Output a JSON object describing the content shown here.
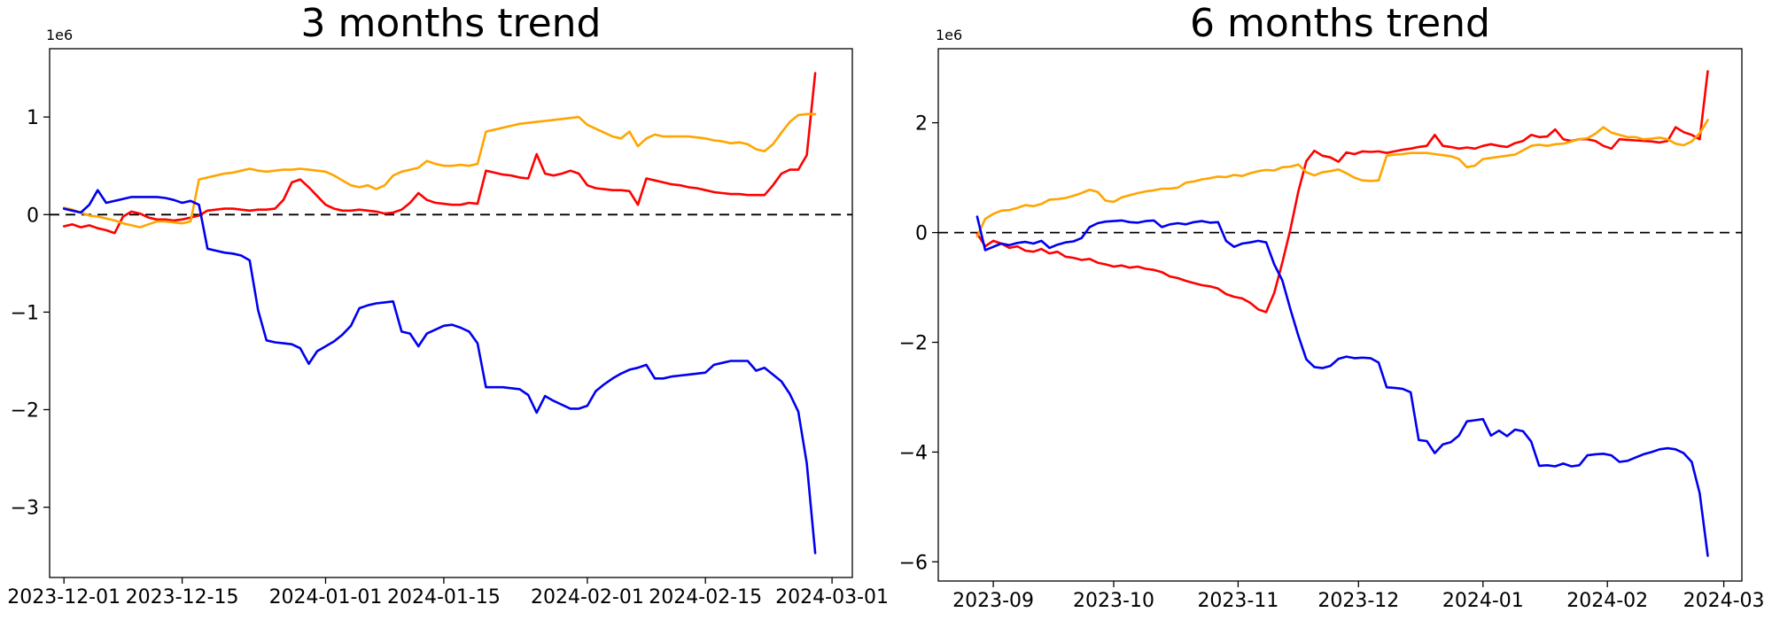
{
  "background": "#ffffff",
  "chart_data": [
    {
      "type": "line",
      "title": "3 months trend",
      "axis_scale_label": "1e6",
      "y_unit": "1e6",
      "grid": false,
      "legend": "none",
      "zero_line_dashed": true,
      "start_date": "2023-12-01",
      "end_date": "2024-02-28",
      "sample_step_days": 1,
      "x_tick_labels": [
        "2023-12-01",
        "2023-12-15",
        "2024-01-01",
        "2024-01-15",
        "2024-02-01",
        "2024-02-15",
        "2024-03-01"
      ],
      "x_tick_days": [
        0,
        14,
        31,
        45,
        62,
        76,
        91
      ],
      "xlim_days": [
        -1.7,
        93.4
      ],
      "y_ticks": [
        1,
        0,
        -1,
        -2,
        -3
      ],
      "ylim": [
        -3.72,
        1.7
      ],
      "series": [
        {
          "name": "red",
          "color": "#ff0000",
          "values": [
            -0.12,
            -0.1,
            -0.13,
            -0.11,
            -0.14,
            -0.16,
            -0.19,
            -0.02,
            0.03,
            0.01,
            -0.03,
            -0.05,
            -0.05,
            -0.06,
            -0.05,
            -0.03,
            -0.01,
            0.04,
            0.05,
            0.06,
            0.06,
            0.05,
            0.04,
            0.05,
            0.05,
            0.06,
            0.15,
            0.33,
            0.36,
            0.28,
            0.19,
            0.1,
            0.06,
            0.04,
            0.04,
            0.05,
            0.04,
            0.03,
            0.01,
            0.02,
            0.05,
            0.12,
            0.22,
            0.15,
            0.12,
            0.11,
            0.1,
            0.1,
            0.12,
            0.11,
            0.45,
            0.43,
            0.41,
            0.4,
            0.38,
            0.37,
            0.62,
            0.42,
            0.4,
            0.42,
            0.45,
            0.42,
            0.3,
            0.27,
            0.26,
            0.25,
            0.25,
            0.24,
            0.1,
            0.37,
            0.35,
            0.33,
            0.31,
            0.3,
            0.28,
            0.27,
            0.25,
            0.23,
            0.22,
            0.21,
            0.21,
            0.2,
            0.2,
            0.2,
            0.3,
            0.42,
            0.46,
            0.46,
            0.61,
            1.45
          ]
        },
        {
          "name": "orange",
          "color": "#ffa500",
          "values": [
            0.07,
            0.05,
            0.02,
            -0.01,
            -0.02,
            -0.04,
            -0.06,
            -0.09,
            -0.11,
            -0.13,
            -0.1,
            -0.07,
            -0.07,
            -0.08,
            -0.09,
            -0.07,
            0.36,
            0.38,
            0.4,
            0.42,
            0.43,
            0.45,
            0.47,
            0.45,
            0.44,
            0.45,
            0.46,
            0.46,
            0.47,
            0.46,
            0.45,
            0.44,
            0.4,
            0.35,
            0.3,
            0.28,
            0.3,
            0.26,
            0.3,
            0.4,
            0.44,
            0.46,
            0.48,
            0.55,
            0.52,
            0.5,
            0.5,
            0.51,
            0.5,
            0.52,
            0.85,
            0.87,
            0.89,
            0.91,
            0.93,
            0.94,
            0.95,
            0.96,
            0.97,
            0.98,
            0.99,
            1.0,
            0.92,
            0.88,
            0.84,
            0.8,
            0.78,
            0.85,
            0.7,
            0.78,
            0.82,
            0.8,
            0.8,
            0.8,
            0.8,
            0.79,
            0.78,
            0.76,
            0.75,
            0.73,
            0.74,
            0.72,
            0.67,
            0.65,
            0.72,
            0.84,
            0.95,
            1.02,
            1.03,
            1.03
          ]
        },
        {
          "name": "blue",
          "color": "#0000ee",
          "values": [
            0.06,
            0.04,
            0.02,
            0.1,
            0.25,
            0.12,
            0.14,
            0.16,
            0.18,
            0.18,
            0.18,
            0.18,
            0.17,
            0.15,
            0.12,
            0.14,
            0.1,
            -0.35,
            -0.37,
            -0.39,
            -0.4,
            -0.42,
            -0.47,
            -0.98,
            -1.29,
            -1.31,
            -1.32,
            -1.33,
            -1.37,
            -1.53,
            -1.4,
            -1.35,
            -1.3,
            -1.23,
            -1.14,
            -0.96,
            -0.93,
            -0.91,
            -0.9,
            -0.89,
            -1.2,
            -1.22,
            -1.35,
            -1.22,
            -1.18,
            -1.14,
            -1.13,
            -1.16,
            -1.2,
            -1.32,
            -1.77,
            -1.77,
            -1.77,
            -1.78,
            -1.79,
            -1.85,
            -2.03,
            -1.86,
            -1.91,
            -1.95,
            -1.99,
            -1.99,
            -1.96,
            -1.81,
            -1.74,
            -1.68,
            -1.63,
            -1.59,
            -1.57,
            -1.54,
            -1.68,
            -1.68,
            -1.66,
            -1.65,
            -1.64,
            -1.63,
            -1.62,
            -1.54,
            -1.52,
            -1.5,
            -1.5,
            -1.5,
            -1.6,
            -1.57,
            -1.64,
            -1.71,
            -1.84,
            -2.02,
            -2.55,
            -3.47
          ]
        }
      ]
    },
    {
      "type": "line",
      "title": "6 months trend",
      "axis_scale_label": "1e6",
      "y_unit": "1e6",
      "grid": false,
      "legend": "none",
      "zero_line_dashed": true,
      "start_date": "2023-08-28",
      "end_date": "2024-02-26",
      "sample_step_days": 2,
      "x_tick_labels": [
        "2023-09",
        "2023-10",
        "2023-11",
        "2023-12",
        "2024-01",
        "2024-02",
        "2024-03"
      ],
      "x_tick_days": [
        4,
        34,
        65,
        95,
        126,
        157,
        186
      ],
      "xlim_days": [
        -9.7,
        190.5
      ],
      "y_ticks": [
        2,
        0,
        -2,
        -4,
        -6
      ],
      "ylim": [
        -6.35,
        3.35
      ],
      "series": [
        {
          "name": "red",
          "color": "#ff0000",
          "values": [
            -0.02,
            -0.25,
            -0.15,
            -0.2,
            -0.28,
            -0.25,
            -0.33,
            -0.35,
            -0.3,
            -0.38,
            -0.35,
            -0.44,
            -0.46,
            -0.5,
            -0.48,
            -0.55,
            -0.58,
            -0.62,
            -0.6,
            -0.64,
            -0.62,
            -0.66,
            -0.68,
            -0.72,
            -0.8,
            -0.83,
            -0.88,
            -0.92,
            -0.96,
            -0.98,
            -1.02,
            -1.12,
            -1.17,
            -1.2,
            -1.28,
            -1.4,
            -1.45,
            -1.1,
            -0.55,
            0.05,
            0.75,
            1.3,
            1.49,
            1.4,
            1.37,
            1.29,
            1.46,
            1.43,
            1.48,
            1.47,
            1.48,
            1.45,
            1.48,
            1.51,
            1.53,
            1.56,
            1.58,
            1.78,
            1.58,
            1.56,
            1.53,
            1.55,
            1.53,
            1.58,
            1.61,
            1.58,
            1.56,
            1.63,
            1.67,
            1.78,
            1.74,
            1.75,
            1.88,
            1.7,
            1.67,
            1.7,
            1.7,
            1.67,
            1.58,
            1.53,
            1.7,
            1.69,
            1.68,
            1.67,
            1.66,
            1.64,
            1.67,
            1.92,
            1.83,
            1.78,
            1.7,
            2.94
          ]
        },
        {
          "name": "orange",
          "color": "#ffa500",
          "values": [
            -0.07,
            0.25,
            0.34,
            0.4,
            0.41,
            0.45,
            0.5,
            0.48,
            0.52,
            0.6,
            0.61,
            0.63,
            0.67,
            0.72,
            0.78,
            0.74,
            0.58,
            0.56,
            0.64,
            0.68,
            0.72,
            0.75,
            0.77,
            0.8,
            0.8,
            0.82,
            0.91,
            0.93,
            0.97,
            0.99,
            1.02,
            1.01,
            1.05,
            1.03,
            1.08,
            1.12,
            1.14,
            1.13,
            1.19,
            1.2,
            1.24,
            1.1,
            1.04,
            1.1,
            1.12,
            1.15,
            1.08,
            1.0,
            0.95,
            0.94,
            0.95,
            1.4,
            1.42,
            1.43,
            1.45,
            1.45,
            1.45,
            1.43,
            1.41,
            1.39,
            1.34,
            1.19,
            1.22,
            1.34,
            1.36,
            1.38,
            1.4,
            1.42,
            1.5,
            1.58,
            1.6,
            1.58,
            1.61,
            1.62,
            1.66,
            1.7,
            1.72,
            1.8,
            1.92,
            1.82,
            1.78,
            1.74,
            1.74,
            1.7,
            1.71,
            1.73,
            1.7,
            1.62,
            1.59,
            1.66,
            1.81,
            2.05
          ]
        },
        {
          "name": "blue",
          "color": "#0000ee",
          "values": [
            0.29,
            -0.32,
            -0.26,
            -0.2,
            -0.23,
            -0.19,
            -0.17,
            -0.2,
            -0.15,
            -0.28,
            -0.22,
            -0.18,
            -0.16,
            -0.1,
            0.1,
            0.17,
            0.2,
            0.21,
            0.22,
            0.19,
            0.18,
            0.21,
            0.22,
            0.1,
            0.15,
            0.17,
            0.15,
            0.19,
            0.21,
            0.18,
            0.19,
            -0.15,
            -0.26,
            -0.2,
            -0.18,
            -0.15,
            -0.18,
            -0.58,
            -0.87,
            -1.39,
            -1.88,
            -2.31,
            -2.45,
            -2.47,
            -2.43,
            -2.3,
            -2.26,
            -2.29,
            -2.28,
            -2.29,
            -2.37,
            -2.82,
            -2.83,
            -2.85,
            -2.91,
            -3.78,
            -3.8,
            -4.02,
            -3.86,
            -3.82,
            -3.7,
            -3.44,
            -3.42,
            -3.4,
            -3.7,
            -3.61,
            -3.71,
            -3.59,
            -3.62,
            -3.81,
            -4.25,
            -4.24,
            -4.26,
            -4.21,
            -4.26,
            -4.24,
            -4.06,
            -4.04,
            -4.03,
            -4.06,
            -4.18,
            -4.16,
            -4.1,
            -4.04,
            -4.0,
            -3.95,
            -3.93,
            -3.95,
            -4.02,
            -4.18,
            -4.75,
            -5.89
          ]
        }
      ]
    }
  ]
}
